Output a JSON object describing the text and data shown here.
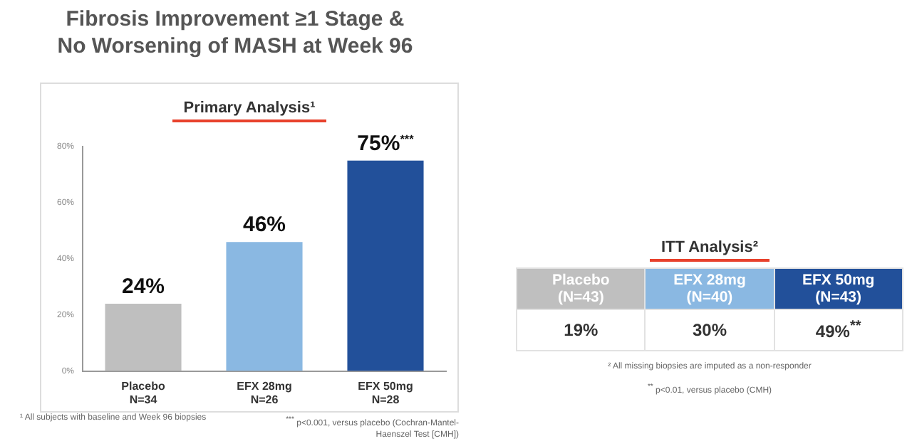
{
  "chart_data": [
    {
      "type": "bar",
      "title": "Fibrosis Improvement ≥1 Stage & No Worsening of MASH at Week 96",
      "subtitle": "Primary Analysis¹",
      "categories": [
        "Placebo\nN=34",
        "EFX 28mg\nN=26",
        "EFX 50mg\nN=28"
      ],
      "values": [
        24,
        46,
        75
      ],
      "colors": [
        "#bfbfbf",
        "#8ab8e2",
        "#22509a"
      ],
      "value_labels": [
        "24%",
        "46%",
        "75%$^{***}$"
      ],
      "ylim": [
        0,
        80
      ],
      "yticks": [
        {
          "value": 0,
          "label": "0%"
        },
        {
          "value": 20,
          "label": "20%"
        },
        {
          "value": 40,
          "label": "40%"
        },
        {
          "value": 60,
          "label": "60%"
        },
        {
          "value": 80,
          "label": "80%"
        }
      ],
      "grid": false,
      "legend": false,
      "annotations": [
        "¹ All subjects with baseline and Week 96 biopsies",
        "$^{***}$ p<0.001, versus placebo (Cochran-Mantel-Haenszel Test [CMH])"
      ]
    },
    {
      "type": "other",
      "title": "ITT Analysis²",
      "categories": [
        "Placebo\n(N=43)",
        "EFX 28mg\n(N=40)",
        "EFX 50mg\n(N=43)"
      ],
      "values": [
        19,
        30,
        49
      ],
      "value_labels": [
        "19%",
        "30%",
        "49%$^{**}$"
      ],
      "annotations": [
        "² All missing biopsies are imputed as a non-responder",
        "$^{**}$ p<0.01, versus placebo (CMH)"
      ]
    }
  ]
}
